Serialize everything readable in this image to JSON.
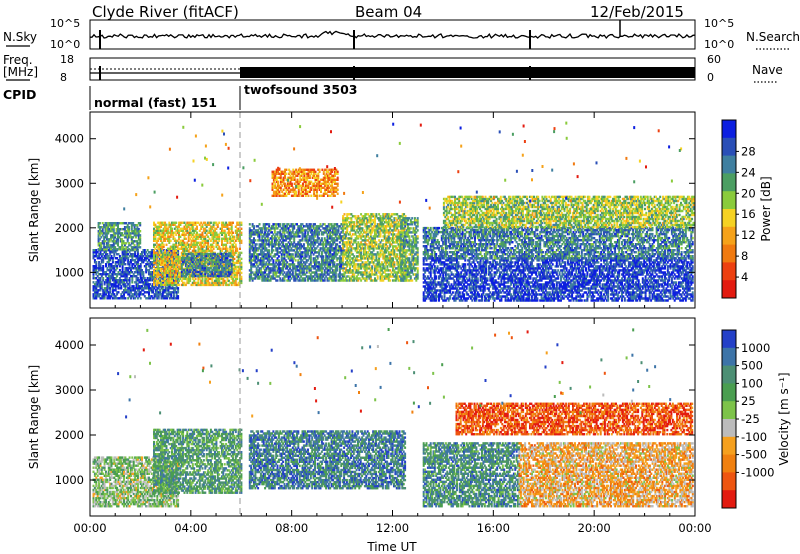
{
  "header": {
    "station": "Clyde River (fitACF)",
    "beam": "Beam 04",
    "date": "12/Feb/2015"
  },
  "strip_panels": {
    "nsky_label": "N.Sky",
    "nsky_ticks": [
      "10^5",
      "10^0"
    ],
    "nsearch_label": "N.Search",
    "freq_label_line1": "Freq.",
    "freq_label_line2": "[MHz]",
    "freq_ticks": [
      "18",
      "8"
    ],
    "nave_ticks": [
      "60",
      "0"
    ],
    "nave_label": "Nave",
    "cpid_label": "CPID",
    "cpid_segments": [
      {
        "label": "normal (fast) 151",
        "start_hour": 0.0,
        "end_hour": 6.0
      },
      {
        "label": "twofsound 3503",
        "start_hour": 6.0,
        "end_hour": 24.0
      }
    ]
  },
  "chart_data": [
    {
      "type": "heatmap",
      "name": "power",
      "ylabel": "Slant Range [km]",
      "xlim": [
        0,
        24
      ],
      "ylim": [
        200,
        4600
      ],
      "yticks": [
        1000,
        2000,
        3000,
        4000
      ],
      "xticks": [
        "00:00",
        "04:00",
        "08:00",
        "12:00",
        "16:00",
        "20:00",
        "00:00"
      ],
      "colorbar": {
        "label": "Power [dB]",
        "ticks": [
          "4",
          "8",
          "12",
          "16",
          "20",
          "24",
          "28"
        ],
        "colors": [
          "#0c1fe0",
          "#2a4fb7",
          "#3f7fa0",
          "#4b9e62",
          "#8acb3c",
          "#f5d223",
          "#f5a21a",
          "#f07a10",
          "#ed4010",
          "#e31b10"
        ]
      },
      "regions": [
        {
          "t0": 0.1,
          "t1": 3.5,
          "r0": 400,
          "r1": 1500,
          "level": 0.85
        },
        {
          "t0": 0.3,
          "t1": 2.0,
          "r0": 1500,
          "r1": 2100,
          "level": 0.7
        },
        {
          "t0": 2.5,
          "t1": 6.0,
          "r0": 700,
          "r1": 2100,
          "level": 0.45
        },
        {
          "t0": 3.6,
          "t1": 5.6,
          "r0": 900,
          "r1": 1400,
          "level": 0.75
        },
        {
          "t0": 6.3,
          "t1": 10.0,
          "r0": 800,
          "r1": 2100,
          "level": 0.75
        },
        {
          "t0": 10.0,
          "t1": 12.5,
          "r0": 800,
          "r1": 2300,
          "level": 0.55
        },
        {
          "t0": 7.2,
          "t1": 9.8,
          "r0": 2700,
          "r1": 3300,
          "level": 0.3
        },
        {
          "t0": 12.3,
          "t1": 13.0,
          "r0": 800,
          "r1": 2200,
          "level": 0.65
        },
        {
          "t0": 13.2,
          "t1": 23.9,
          "r0": 350,
          "r1": 1300,
          "level": 0.9
        },
        {
          "t0": 13.2,
          "t1": 23.9,
          "r0": 1300,
          "r1": 2000,
          "level": 0.75
        },
        {
          "t0": 14.0,
          "t1": 23.9,
          "r0": 2000,
          "r1": 2700,
          "level": 0.55
        }
      ]
    },
    {
      "type": "heatmap",
      "name": "velocity",
      "ylabel": "Slant Range [km]",
      "xlabel": "Time UT",
      "xlim": [
        0,
        24
      ],
      "ylim": [
        200,
        4600
      ],
      "yticks": [
        1000,
        2000,
        3000,
        4000
      ],
      "xticks": [
        "00:00",
        "04:00",
        "08:00",
        "12:00",
        "16:00",
        "20:00",
        "00:00"
      ],
      "colorbar": {
        "label": "Velocity [m s⁻¹]",
        "ticks": [
          "1000",
          "500",
          "100",
          "25",
          "-25",
          "-100",
          "-500",
          "-1000"
        ],
        "colors": [
          "#2440c8",
          "#3d74a8",
          "#4c8f74",
          "#4a9e50",
          "#7dc34a",
          "#bcbcbc",
          "#f5a01e",
          "#f0800f",
          "#ee5510",
          "#e31b10"
        ]
      },
      "regions": [
        {
          "t0": 0.1,
          "t1": 3.5,
          "r0": 400,
          "r1": 1500,
          "level": 0.55
        },
        {
          "t0": 2.5,
          "t1": 6.0,
          "r0": 700,
          "r1": 2100,
          "level": 0.7
        },
        {
          "t0": 6.3,
          "t1": 12.5,
          "r0": 800,
          "r1": 2100,
          "level": 0.8
        },
        {
          "t0": 13.2,
          "t1": 17.0,
          "r0": 400,
          "r1": 1800,
          "level": 0.75
        },
        {
          "t0": 17.0,
          "t1": 23.9,
          "r0": 400,
          "r1": 1800,
          "level": 0.35
        },
        {
          "t0": 14.5,
          "t1": 23.9,
          "r0": 2000,
          "r1": 2700,
          "level": 0.15
        }
      ]
    }
  ]
}
